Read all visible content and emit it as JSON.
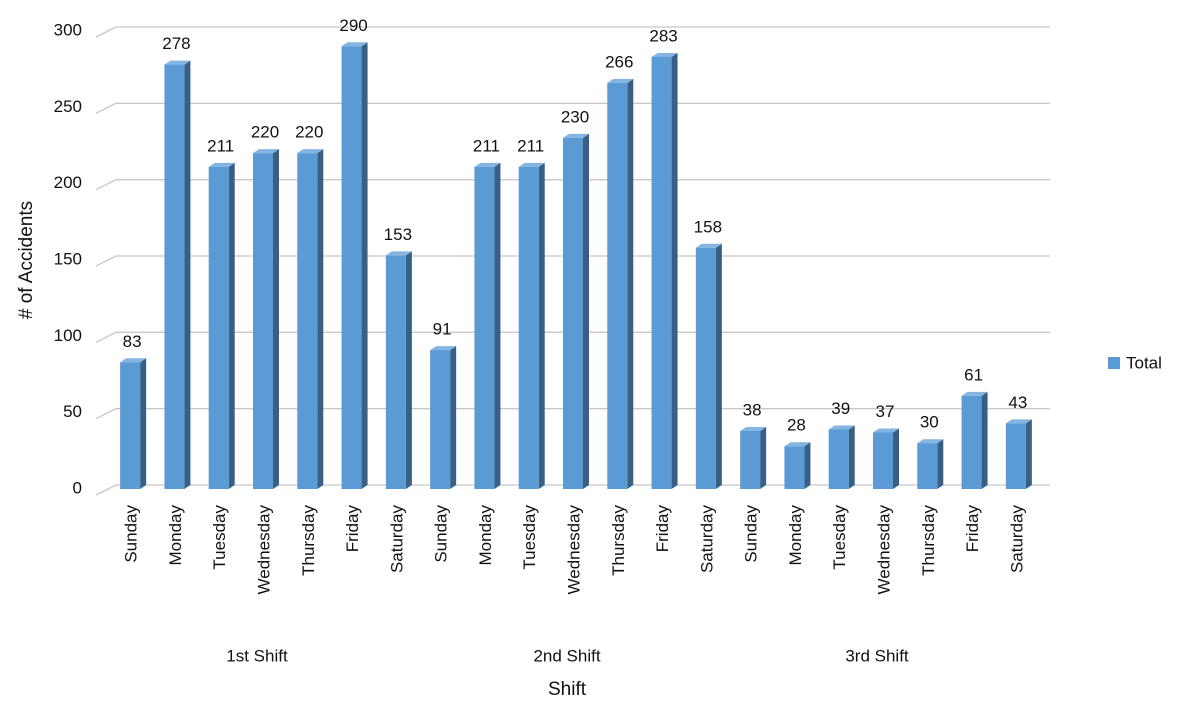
{
  "chart_data": {
    "type": "bar",
    "x_label": "Shift",
    "y_label": "# of Accidents",
    "categories": [
      "Sunday",
      "Monday",
      "Tuesday",
      "Wednesday",
      "Thursday",
      "Friday",
      "Saturday",
      "Sunday",
      "Monday",
      "Tuesday",
      "Wednesday",
      "Thursday",
      "Friday",
      "Saturday",
      "Sunday",
      "Monday",
      "Tuesday",
      "Wednesday",
      "Thursday",
      "Friday",
      "Saturday"
    ],
    "groups": [
      "1st Shift",
      "2nd Shift",
      "3rd Shift"
    ],
    "series": [
      {
        "name": "Total",
        "color": "#5b9bd5",
        "values": [
          83,
          278,
          211,
          220,
          220,
          290,
          153,
          91,
          211,
          211,
          230,
          266,
          283,
          158,
          38,
          28,
          39,
          37,
          30,
          61,
          43
        ]
      }
    ],
    "ylim": [
      0,
      300
    ],
    "yticks": [
      0,
      50,
      100,
      150,
      200,
      250,
      300
    ],
    "grid": true,
    "legend": "right"
  }
}
